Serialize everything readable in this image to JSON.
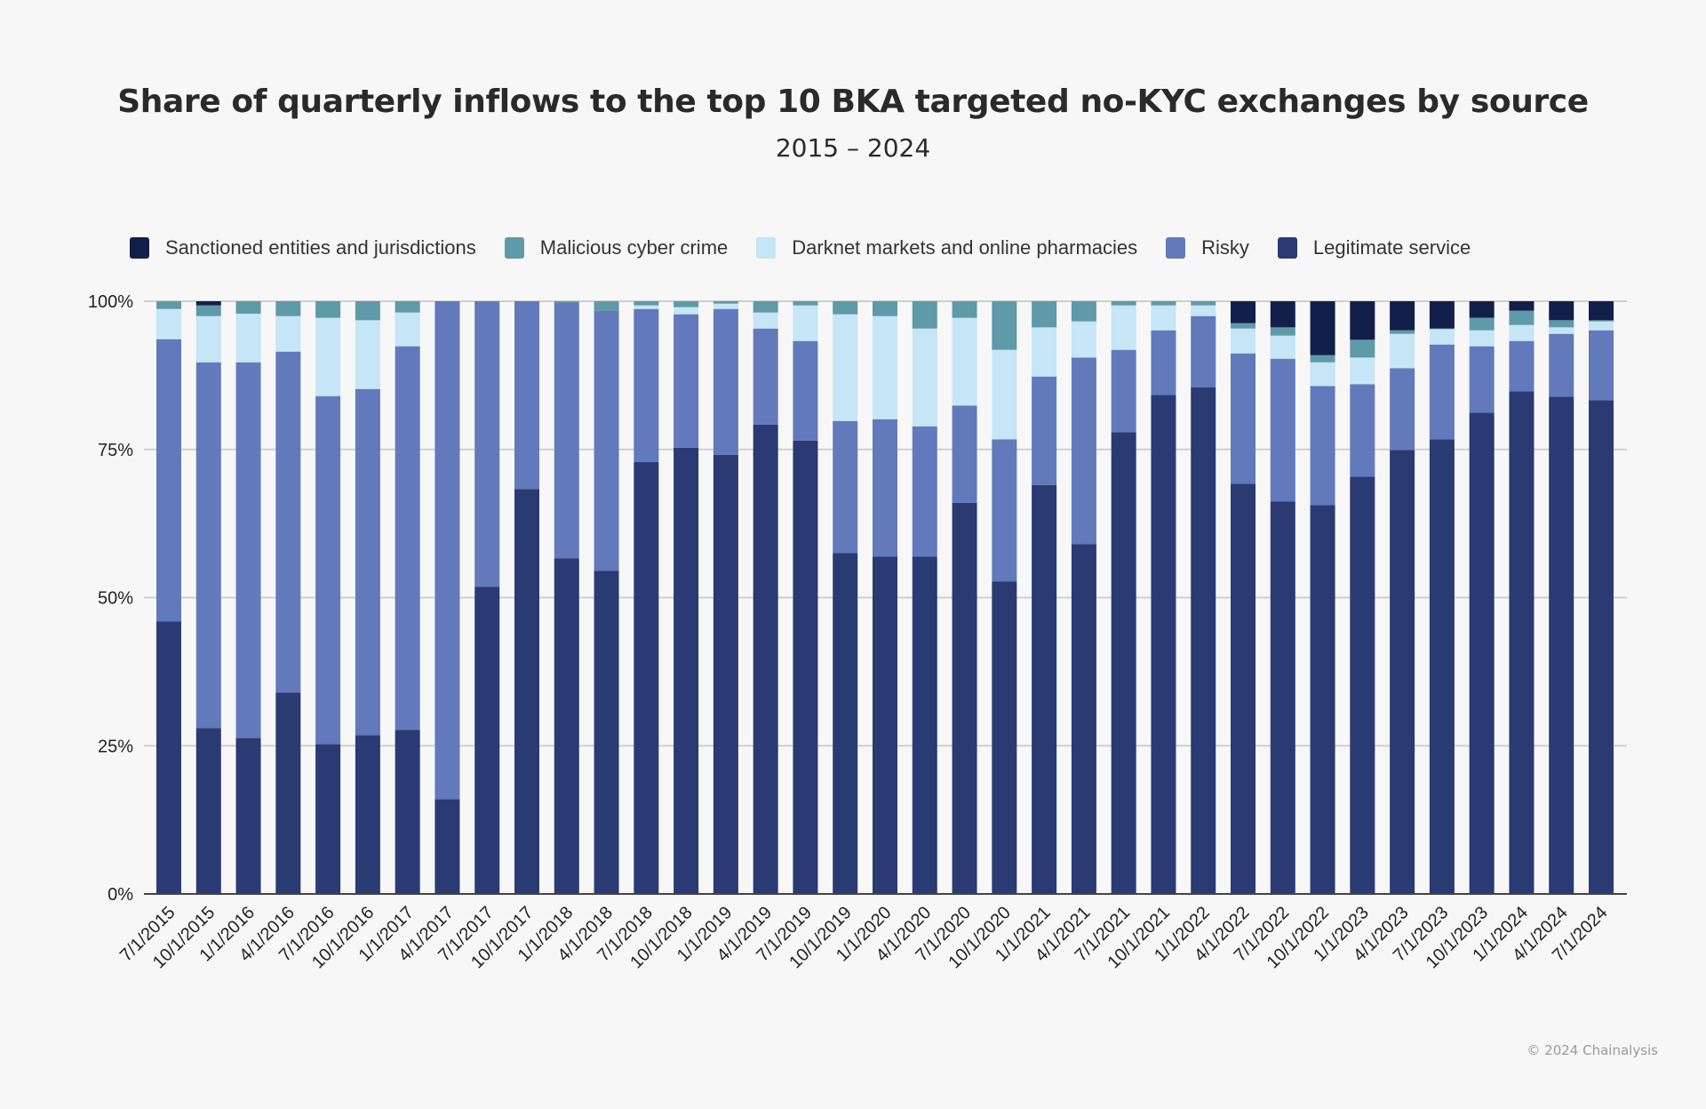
{
  "chart_data": {
    "type": "bar",
    "stacked": true,
    "normalized": true,
    "title": "Share of quarterly inflows to the top 10 BKA targeted no-KYC exchanges by source",
    "subtitle": "2015 – 2024",
    "xlabel": "",
    "ylabel": "",
    "ylim": [
      0,
      100
    ],
    "y_ticks": [
      "0%",
      "25%",
      "50%",
      "75%",
      "100%"
    ],
    "y_tick_values": [
      0,
      25,
      50,
      75,
      100
    ],
    "grid": true,
    "legend_position": "top",
    "categories": [
      "7/1/2015",
      "10/1/2015",
      "1/1/2016",
      "4/1/2016",
      "7/1/2016",
      "10/1/2016",
      "1/1/2017",
      "4/1/2017",
      "7/1/2017",
      "10/1/2017",
      "1/1/2018",
      "4/1/2018",
      "7/1/2018",
      "10/1/2018",
      "1/1/2019",
      "4/1/2019",
      "7/1/2019",
      "10/1/2019",
      "1/1/2020",
      "4/1/2020",
      "7/1/2020",
      "10/1/2020",
      "1/1/2021",
      "4/1/2021",
      "7/1/2021",
      "10/1/2021",
      "1/1/2022",
      "4/1/2022",
      "7/1/2022",
      "10/1/2022",
      "1/1/2023",
      "4/1/2023",
      "7/1/2023",
      "10/1/2023",
      "1/1/2024",
      "4/1/2024",
      "7/1/2024"
    ],
    "series": [
      {
        "name": "Legitimate service",
        "color": "#2a3a73",
        "values": [
          46.0,
          28.0,
          26.3,
          34.0,
          25.3,
          26.8,
          27.7,
          16.0,
          51.8,
          68.3,
          56.6,
          54.5,
          72.9,
          75.3,
          74.1,
          79.2,
          76.5,
          57.5,
          56.9,
          56.9,
          66.0,
          52.7,
          69.0,
          59.0,
          77.9,
          84.2,
          85.5,
          69.2,
          66.2,
          65.6,
          70.4,
          74.9,
          76.7,
          81.2,
          84.8,
          83.9,
          83.3
        ]
      },
      {
        "name": "Risky",
        "color": "#6279bb",
        "values": [
          47.6,
          61.7,
          63.4,
          57.5,
          58.7,
          58.4,
          64.7,
          84.0,
          48.2,
          31.7,
          43.1,
          43.9,
          25.8,
          22.5,
          24.6,
          16.2,
          16.8,
          22.3,
          23.2,
          22.0,
          16.4,
          24.0,
          18.3,
          31.5,
          13.9,
          10.9,
          12.0,
          22.0,
          24.1,
          20.1,
          15.6,
          13.8,
          16.0,
          11.2,
          8.5,
          10.6,
          11.8
        ]
      },
      {
        "name": "Darknet markets and online pharmacies",
        "color": "#c6e5f6",
        "values": [
          5.1,
          7.8,
          8.2,
          6.0,
          13.2,
          11.6,
          5.7,
          0,
          0,
          0,
          0,
          0,
          0.6,
          1.2,
          0.9,
          2.7,
          6.0,
          18.0,
          17.4,
          16.5,
          14.8,
          15.1,
          8.3,
          6.1,
          7.5,
          4.2,
          1.8,
          4.2,
          3.9,
          4.0,
          4.5,
          5.8,
          2.6,
          2.7,
          2.7,
          1.1,
          1.5
        ]
      },
      {
        "name": "Malicious cyber crime",
        "color": "#5e9aa8",
        "values": [
          1.3,
          1.8,
          2.1,
          2.5,
          2.8,
          3.2,
          1.9,
          0,
          0,
          0,
          0.3,
          1.6,
          0.7,
          1.0,
          0.4,
          1.9,
          0.7,
          2.2,
          2.5,
          4.6,
          2.8,
          8.2,
          4.4,
          3.4,
          0.7,
          0.7,
          0.7,
          0.9,
          1.4,
          1.2,
          3.0,
          0.6,
          0.1,
          2.1,
          2.4,
          1.2,
          0.2
        ]
      },
      {
        "name": "Sanctioned entities and jurisdictions",
        "color": "#121f4a",
        "values": [
          0,
          0.7,
          0,
          0,
          0,
          0,
          0,
          0,
          0,
          0,
          0,
          0,
          0,
          0,
          0,
          0,
          0,
          0,
          0,
          0,
          0,
          0,
          0,
          0,
          0,
          0,
          0,
          3.7,
          4.4,
          9.1,
          6.5,
          4.9,
          4.6,
          2.8,
          1.6,
          3.2,
          3.2
        ]
      }
    ],
    "legend": [
      {
        "label": "Sanctioned entities and jurisdictions",
        "color": "#121f4a"
      },
      {
        "label": "Malicious cyber crime",
        "color": "#5e9aa8"
      },
      {
        "label": "Darknet markets and online pharmacies",
        "color": "#c6e5f6"
      },
      {
        "label": "Risky",
        "color": "#6279bb"
      },
      {
        "label": "Legitimate service",
        "color": "#2a3a73"
      }
    ]
  },
  "footer": {
    "copyright": "© 2024 Chainalysis"
  }
}
